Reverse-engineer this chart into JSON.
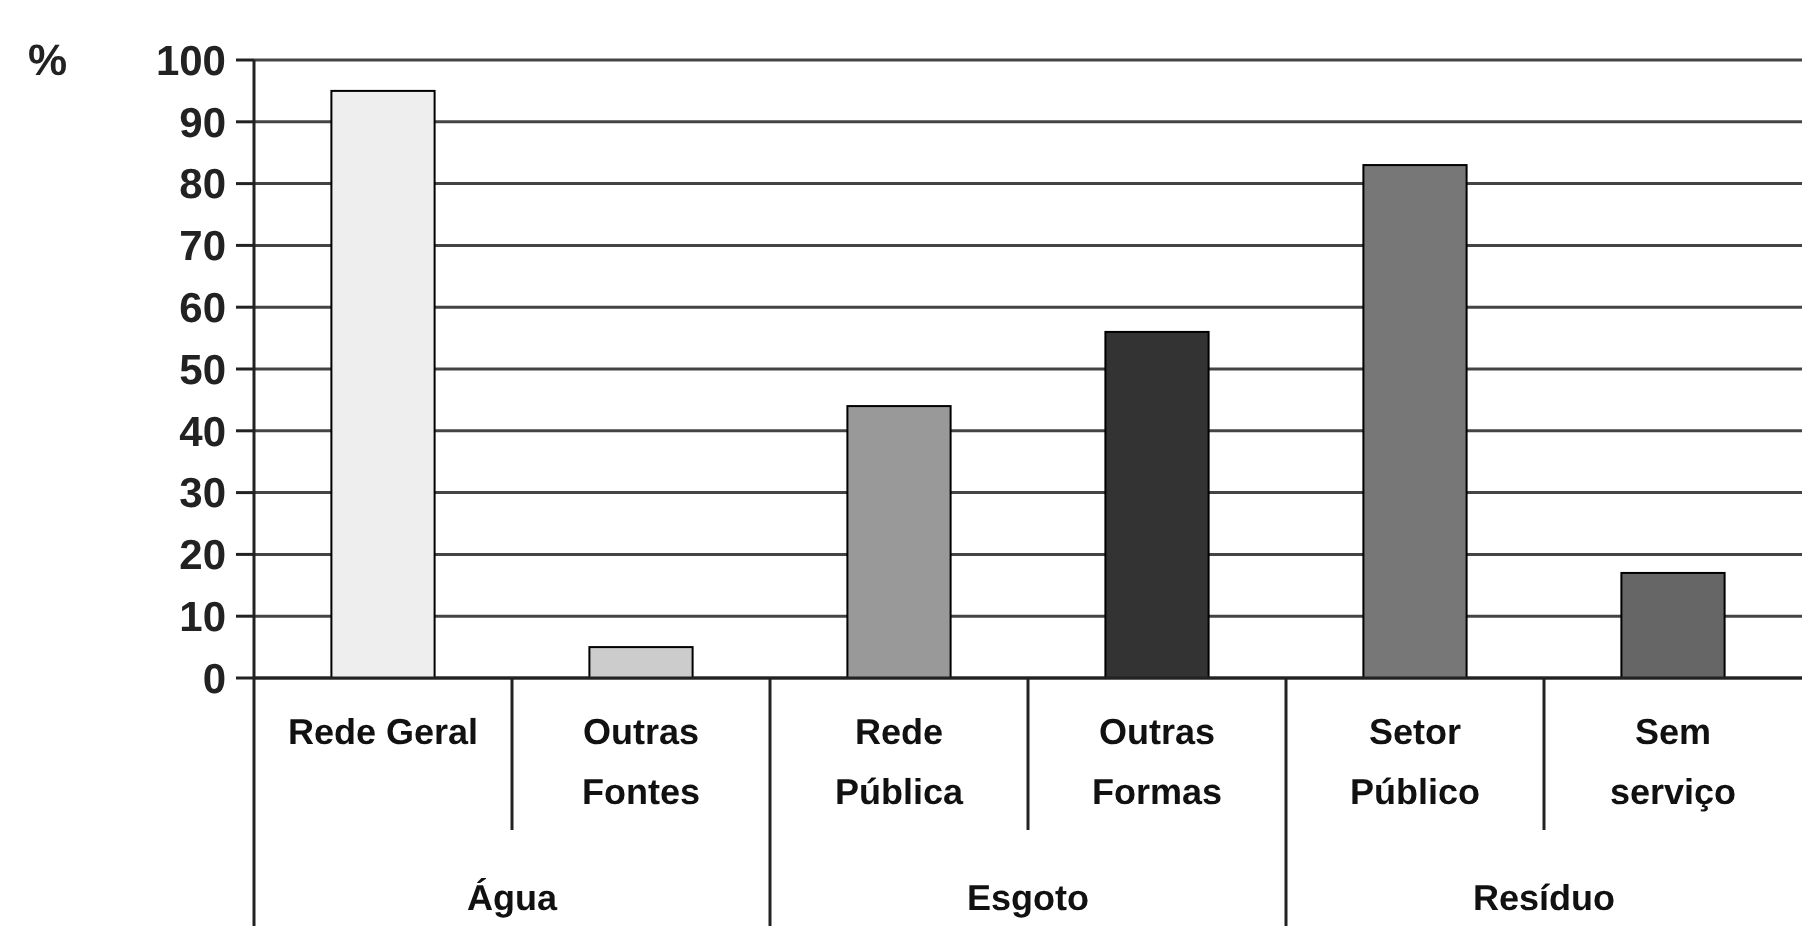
{
  "chart_data": {
    "type": "bar",
    "ylabel": "%",
    "categories": [
      "Rede Geral",
      "Outras Fontes",
      "Rede Pública",
      "Outras Formas",
      "Setor Público",
      "Sem serviço"
    ],
    "values": [
      95,
      5,
      44,
      56,
      83,
      17
    ],
    "colors": [
      "#eeeeee",
      "#cccccc",
      "#999999",
      "#333333",
      "#777777",
      "#666666"
    ],
    "ylim": [
      0,
      100
    ],
    "yticks": [
      0,
      10,
      20,
      30,
      40,
      50,
      60,
      70,
      80,
      90,
      100
    ],
    "grid": "y",
    "annotations": [
      "Água",
      "Esgoto",
      "Resíduo"
    ]
  }
}
